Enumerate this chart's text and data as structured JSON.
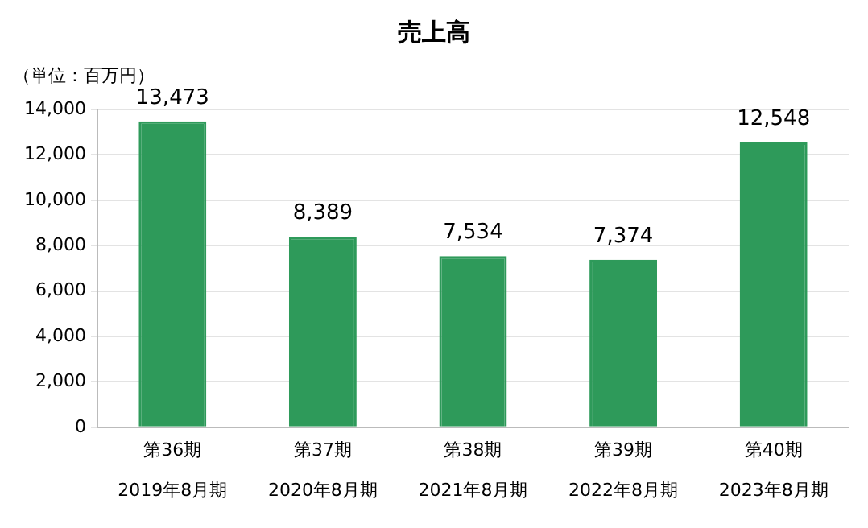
{
  "chart_data": {
    "type": "bar",
    "title": "売上高",
    "ylabel": "（単位：百万円）",
    "categories": [
      "第36期\n2019年8月期",
      "第37期\n2020年8月期",
      "第38期\n2021年8月期",
      "第39期\n2022年8月期",
      "第40期\n2023年8月期"
    ],
    "values": [
      13473,
      8389,
      7534,
      7374,
      12548
    ],
    "value_labels": [
      "13,473",
      "8,389",
      "7,534",
      "7,374",
      "12,548"
    ],
    "color": "#2e9a5a",
    "ylim": [
      0,
      14000
    ],
    "yticks": [
      {
        "value": 0,
        "label": "0"
      },
      {
        "value": 2000,
        "label": "2,000"
      },
      {
        "value": 4000,
        "label": "4,000"
      },
      {
        "value": 6000,
        "label": "6,000"
      },
      {
        "value": 8000,
        "label": "8,000"
      },
      {
        "value": 10000,
        "label": "10,000"
      },
      {
        "value": 12000,
        "label": "12,000"
      },
      {
        "value": 14000,
        "label": "14,000"
      }
    ],
    "grid": "y",
    "legend": false
  }
}
